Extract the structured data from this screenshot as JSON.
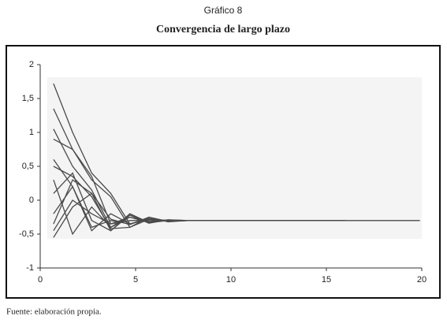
{
  "chart_data": {
    "type": "line",
    "caption": "Gráfico 8",
    "title": "Convergencia de largo plazo",
    "source": "Fuente: elaboración propia.",
    "x": [
      0.7,
      1.7,
      2.7,
      3.7,
      4.7,
      5.7,
      6.7,
      7.7,
      8.7,
      16,
      19.9
    ],
    "series": [
      {
        "color": "#4a4a4a",
        "values": [
          1.72,
          1.0,
          0.4,
          0.1,
          -0.35,
          -0.28,
          -0.3,
          -0.3,
          -0.3,
          -0.3,
          null
        ]
      },
      {
        "color": "#4a4a4a",
        "values": [
          1.35,
          0.75,
          0.3,
          0.05,
          -0.4,
          -0.25,
          -0.31,
          -0.3,
          -0.3,
          -0.3,
          null
        ]
      },
      {
        "color": "#4a4a4a",
        "values": [
          1.05,
          0.5,
          0.15,
          -0.4,
          -0.22,
          -0.32,
          -0.3,
          -0.3,
          -0.3,
          -0.3,
          null
        ]
      },
      {
        "color": "#4a4a4a",
        "values": [
          0.9,
          0.75,
          0.35,
          -0.35,
          -0.25,
          -0.33,
          -0.29,
          -0.3,
          -0.3,
          -0.3,
          -0.3
        ]
      },
      {
        "color": "#4a4a4a",
        "values": [
          0.6,
          0.2,
          -0.45,
          -0.2,
          -0.35,
          -0.28,
          -0.31,
          -0.3,
          -0.3,
          -0.3,
          null
        ]
      },
      {
        "color": "#4a4a4a",
        "values": [
          0.3,
          -0.5,
          -0.1,
          -0.4,
          -0.25,
          -0.32,
          -0.3,
          -0.3,
          -0.3,
          -0.3,
          null
        ]
      },
      {
        "color": "#4a4a4a",
        "values": [
          0.1,
          0.4,
          -0.3,
          -0.45,
          -0.22,
          -0.34,
          -0.29,
          -0.3,
          -0.3,
          -0.3,
          null
        ]
      },
      {
        "color": "#4a4a4a",
        "values": [
          -0.2,
          0.2,
          -0.4,
          -0.3,
          -0.35,
          -0.27,
          -0.31,
          -0.3,
          -0.3,
          -0.3,
          null
        ]
      },
      {
        "color": "#4a4a4a",
        "values": [
          -0.45,
          0.0,
          -0.2,
          -0.35,
          -0.3,
          -0.3,
          -0.3,
          -0.3,
          -0.3,
          -0.3,
          null
        ]
      },
      {
        "color": "#4a4a4a",
        "values": [
          -0.55,
          -0.1,
          0.1,
          -0.45,
          -0.2,
          -0.33,
          -0.3,
          -0.3,
          -0.3,
          -0.3,
          null
        ]
      },
      {
        "color": "#4a4a4a",
        "values": [
          0.5,
          0.35,
          0.05,
          -0.42,
          -0.4,
          -0.28,
          -0.3,
          -0.3,
          -0.3,
          -0.3,
          null
        ]
      },
      {
        "color": "#4a4a4a",
        "values": [
          -0.35,
          0.3,
          0.1,
          -0.28,
          -0.36,
          -0.25,
          -0.32,
          -0.3,
          -0.3,
          -0.3,
          null
        ]
      }
    ],
    "xlim": [
      0,
      20
    ],
    "xticks": [
      0,
      5,
      10,
      15,
      20
    ],
    "ylim": [
      -1,
      2
    ],
    "yticks": [
      -1,
      {
        "value": -0.5,
        "label": "-0,5"
      },
      0,
      {
        "value": 0.5,
        "label": "0,5"
      },
      1,
      {
        "value": 1.5,
        "label": "1,5"
      },
      2
    ],
    "grid": false
  }
}
